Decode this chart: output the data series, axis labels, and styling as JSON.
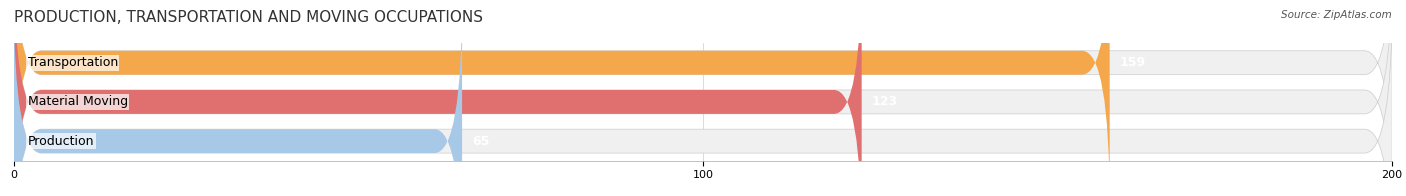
{
  "title": "PRODUCTION, TRANSPORTATION AND MOVING OCCUPATIONS",
  "source": "Source: ZipAtlas.com",
  "categories": [
    "Transportation",
    "Material Moving",
    "Production"
  ],
  "values": [
    159,
    123,
    65
  ],
  "bar_colors": [
    "#F5A84B",
    "#E07070",
    "#A8C8E8"
  ],
  "xlim": [
    0,
    200
  ],
  "xticks": [
    0,
    100,
    200
  ],
  "title_fontsize": 11,
  "label_fontsize": 9,
  "value_fontsize": 9,
  "bar_height": 0.55,
  "background_color": "#ffffff"
}
